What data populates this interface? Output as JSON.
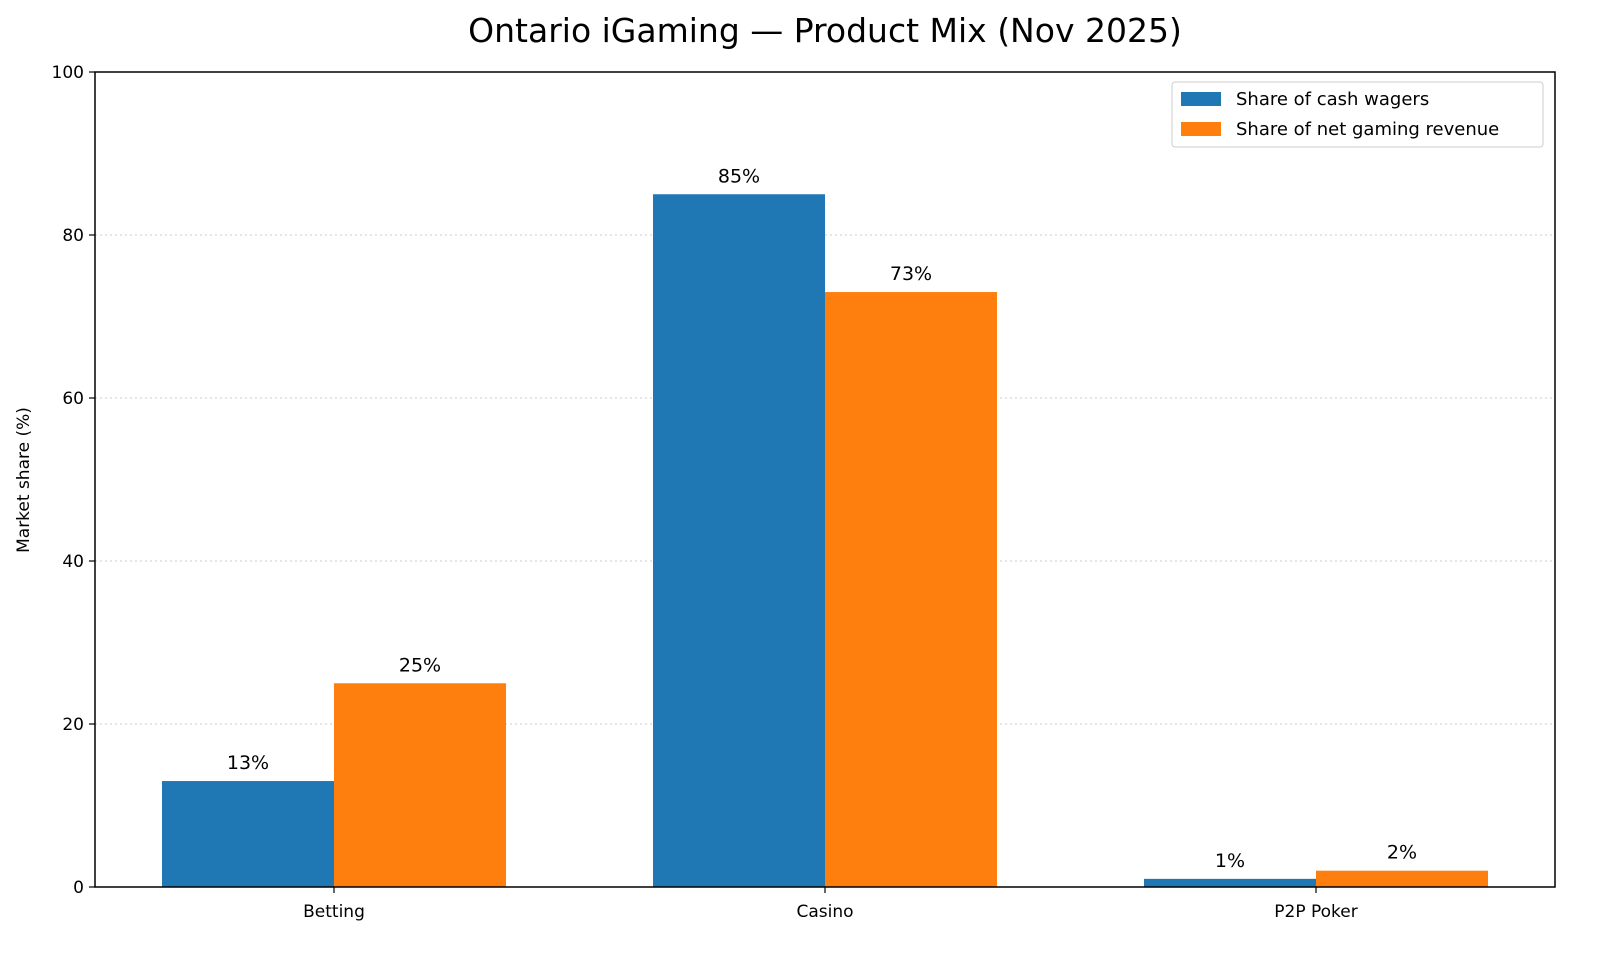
{
  "chart_data": {
    "type": "bar",
    "title": "Ontario iGaming — Product Mix (Nov 2025)",
    "xlabel": "",
    "ylabel": "Market share (%)",
    "ylim": [
      0,
      100
    ],
    "yticks": [
      0,
      20,
      40,
      60,
      80,
      100
    ],
    "grid": "y-dotted",
    "legend_position": "top-right",
    "categories": [
      "Betting",
      "Casino",
      "P2P Poker"
    ],
    "series": [
      {
        "name": "Share of cash wagers",
        "color": "#1f77b4",
        "values": [
          13,
          85,
          1
        ],
        "labels": [
          "13%",
          "85%",
          "1%"
        ]
      },
      {
        "name": "Share of net gaming revenue",
        "color": "#ff7f0e",
        "values": [
          25,
          73,
          2
        ],
        "labels": [
          "25%",
          "73%",
          "2%"
        ]
      }
    ]
  }
}
